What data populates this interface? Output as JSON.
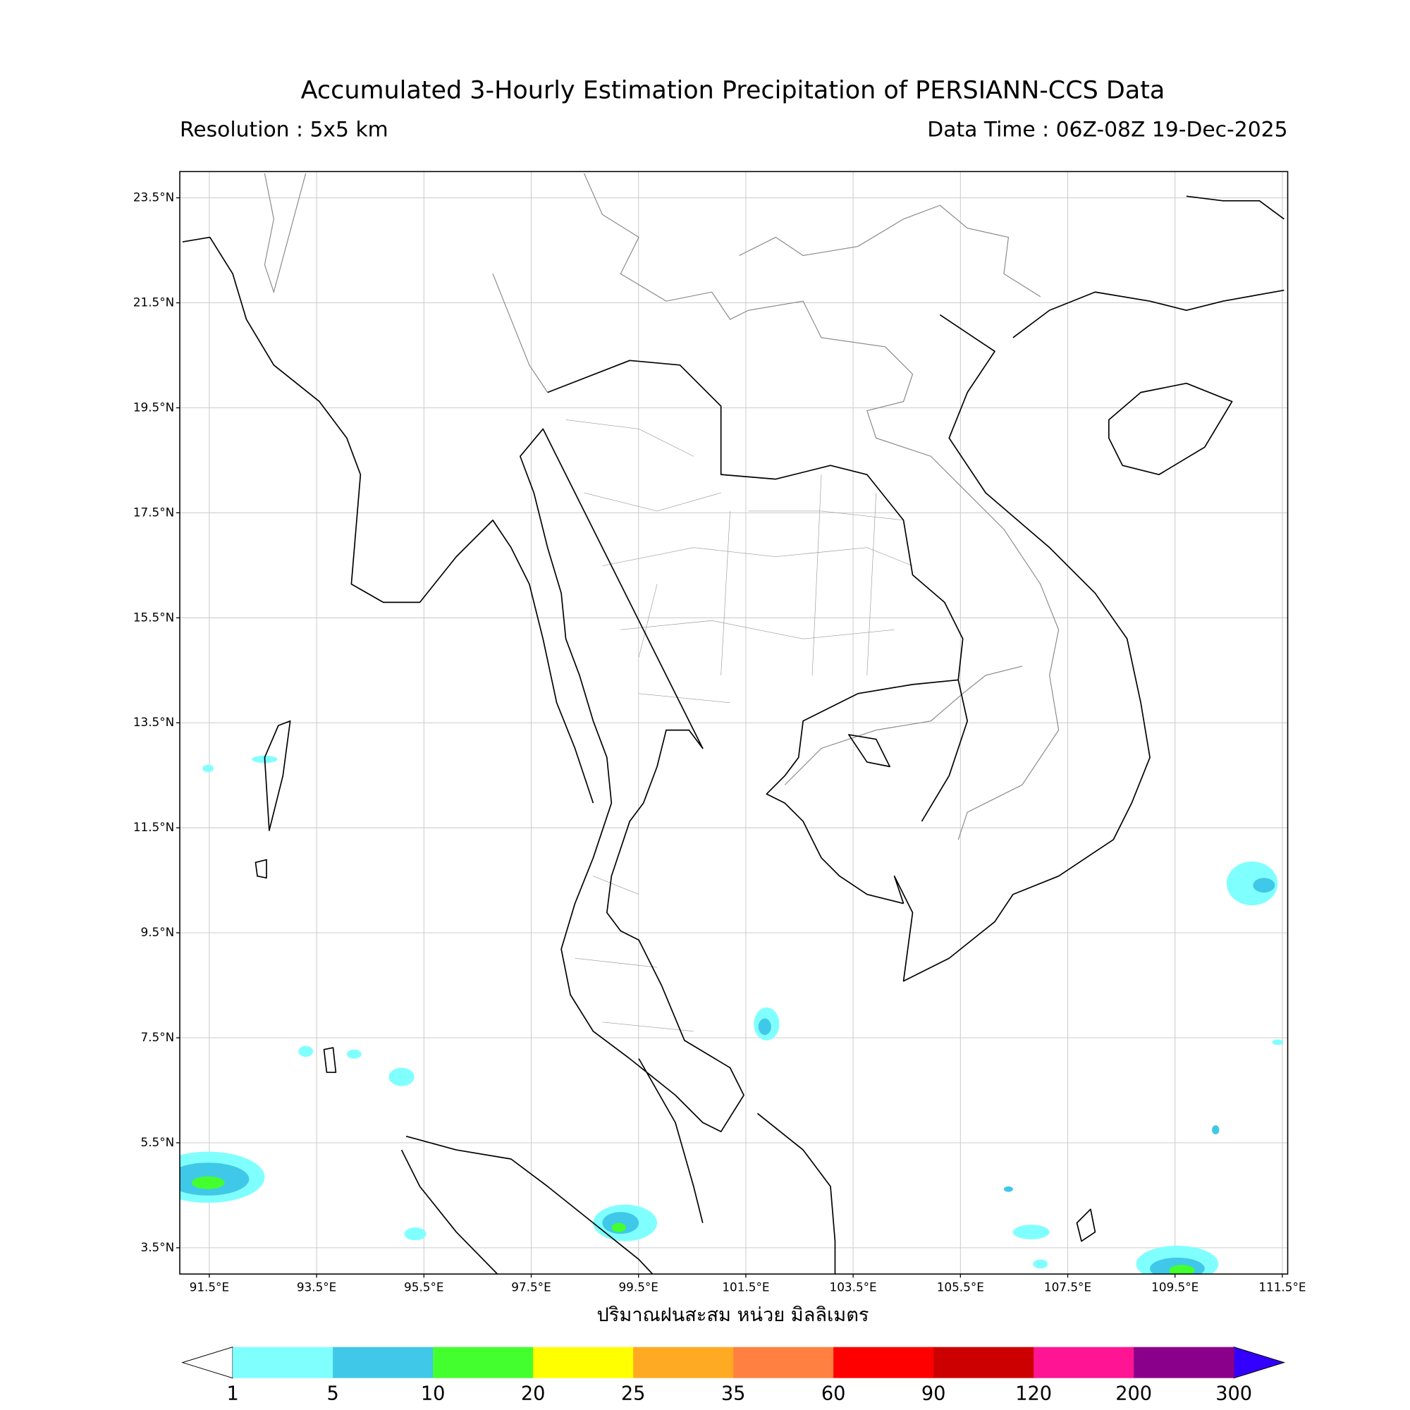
{
  "title": "Accumulated 3-Hourly Estimation Precipitation of PERSIANN-CCS Data",
  "resolution": "Resolution : 5x5 km",
  "data_time": "Data Time : 06Z-08Z 19-Dec-2025",
  "map": {
    "xlim": [
      90.95,
      111.6
    ],
    "ylim": [
      3.0,
      24.0
    ],
    "grid": true,
    "xticks": [
      {
        "value": 91.5,
        "label": "91.5°E"
      },
      {
        "value": 93.5,
        "label": "93.5°E"
      },
      {
        "value": 95.5,
        "label": "95.5°E"
      },
      {
        "value": 97.5,
        "label": "97.5°E"
      },
      {
        "value": 99.5,
        "label": "99.5°E"
      },
      {
        "value": 101.5,
        "label": "101.5°E"
      },
      {
        "value": 103.5,
        "label": "103.5°E"
      },
      {
        "value": 105.5,
        "label": "105.5°E"
      },
      {
        "value": 107.5,
        "label": "107.5°E"
      },
      {
        "value": 109.5,
        "label": "109.5°E"
      },
      {
        "value": 111.5,
        "label": "111.5°E"
      }
    ],
    "yticks": [
      {
        "value": 23.5,
        "label": "23.5°N"
      },
      {
        "value": 21.5,
        "label": "21.5°N"
      },
      {
        "value": 19.5,
        "label": "19.5°N"
      },
      {
        "value": 17.5,
        "label": "17.5°N"
      },
      {
        "value": 15.5,
        "label": "15.5°N"
      },
      {
        "value": 13.5,
        "label": "13.5°N"
      },
      {
        "value": 11.5,
        "label": "11.5°N"
      },
      {
        "value": 9.5,
        "label": "9.5°N"
      },
      {
        "value": 7.5,
        "label": "7.5°N"
      },
      {
        "value": 5.5,
        "label": "5.5°N"
      },
      {
        "value": 3.5,
        "label": "3.5°N"
      }
    ],
    "xlabel": "ปริมาณฝนสะสม หน่วย มิลลิเมตร"
  },
  "colorbar": {
    "levels": [
      1,
      5,
      10,
      20,
      25,
      35,
      60,
      90,
      120,
      200,
      300
    ],
    "colors": [
      "#80ffff",
      "#40c8e8",
      "#44ff2e",
      "#ffff00",
      "#ffaa22",
      "#ff8040",
      "#ff0000",
      "#cc0000",
      "#ff1493",
      "#8b008b"
    ],
    "under_color": "#ffffff",
    "over_color": "#3300ff"
  }
}
